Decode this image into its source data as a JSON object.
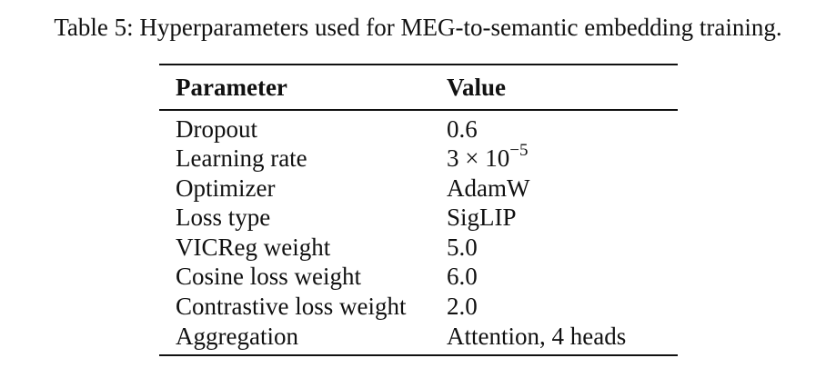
{
  "caption": "Table 5: Hyperparameters used for MEG-to-semantic embedding training.",
  "table": {
    "headers": [
      "Parameter",
      "Value"
    ],
    "rows": [
      {
        "parameter": "Dropout",
        "value": "0.6"
      },
      {
        "parameter": "Learning rate",
        "value_base": "3 × 10",
        "value_exp": "−5"
      },
      {
        "parameter": "Optimizer",
        "value": "AdamW"
      },
      {
        "parameter": "Loss type",
        "value": "SigLIP"
      },
      {
        "parameter": "VICReg weight",
        "value": "5.0"
      },
      {
        "parameter": "Cosine loss weight",
        "value": "6.0"
      },
      {
        "parameter": "Contrastive loss weight",
        "value": "2.0"
      },
      {
        "parameter": "Aggregation",
        "value": "Attention, 4 heads"
      }
    ]
  }
}
